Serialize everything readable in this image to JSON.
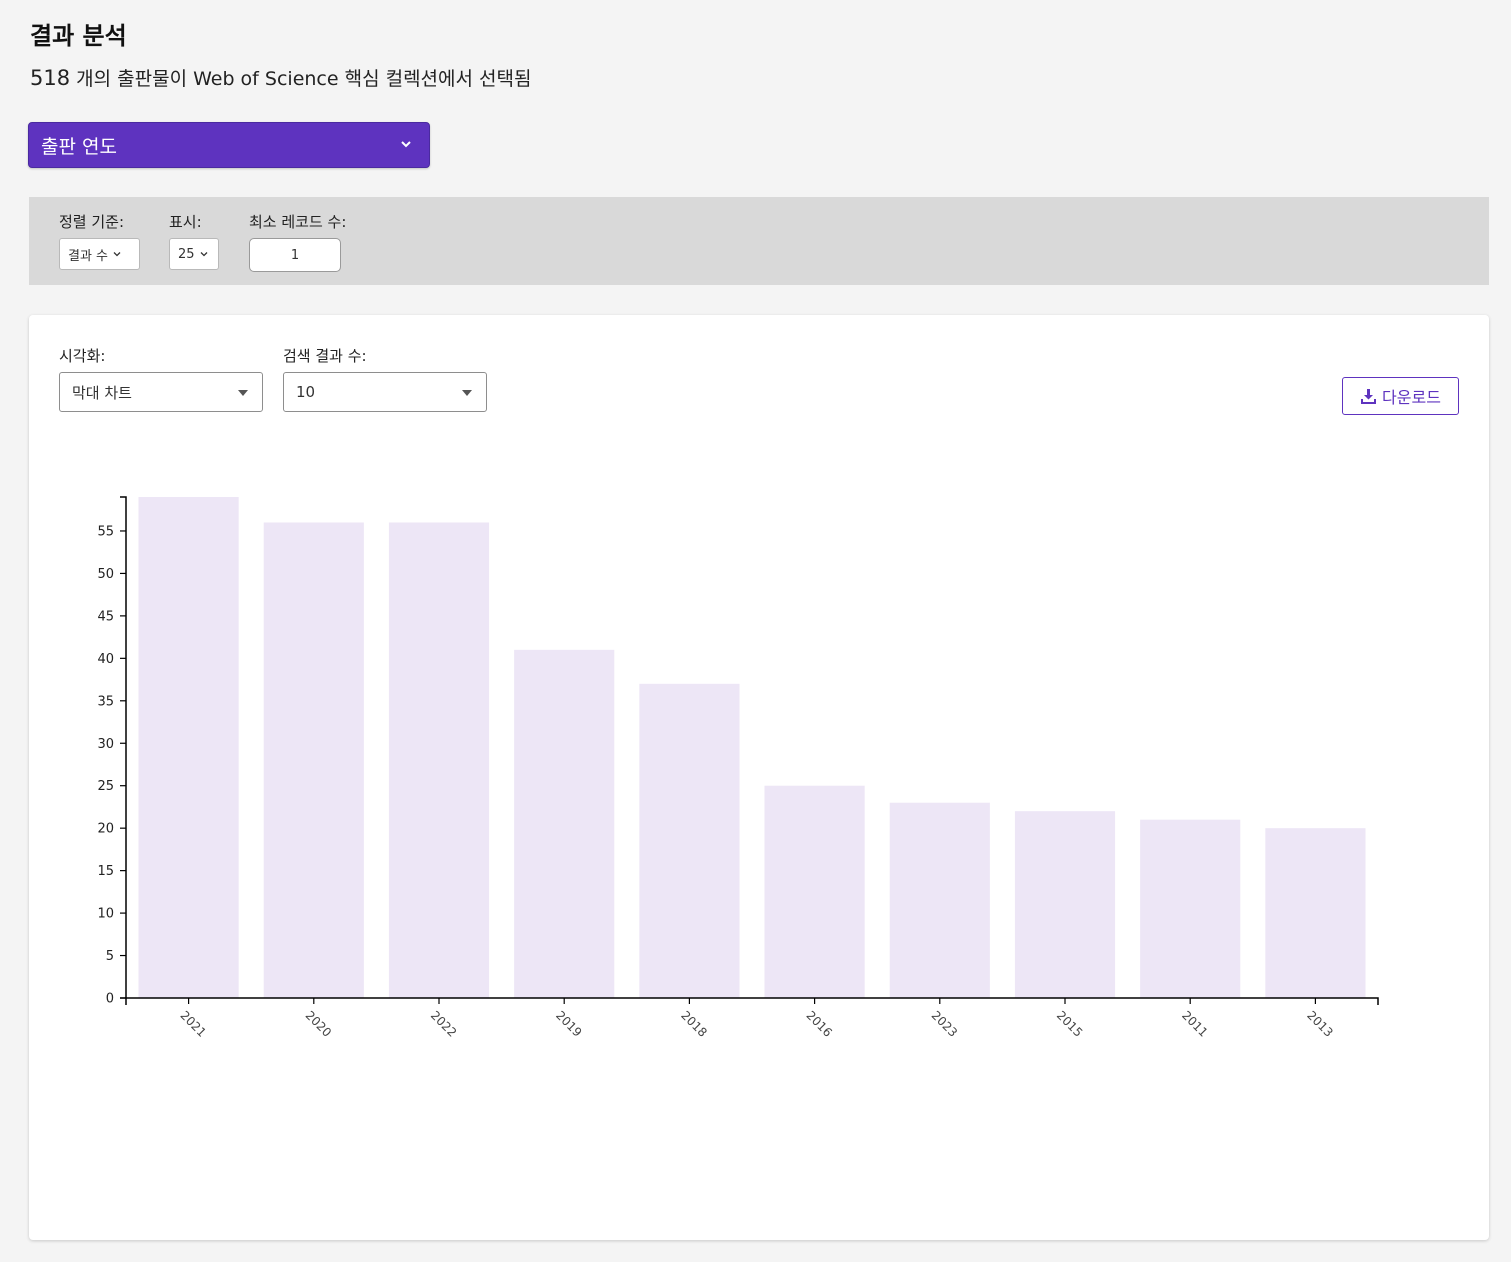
{
  "header": {
    "title": "결과 분석",
    "subtitle_count": "518",
    "subtitle_text": " 개의 출판물이 Web of Science 핵심 컬렉션에서 선택됨"
  },
  "field_selector": {
    "label": "출판 연도",
    "icon": "chevron-down-icon"
  },
  "controls": {
    "sort_label": "정렬 기준:",
    "sort_value": "결과 수",
    "show_label": "표시:",
    "show_value": "25",
    "min_records_label": "최소 레코드 수:",
    "min_records_value": "1"
  },
  "chart_panel": {
    "visualization_label": "시각화:",
    "visualization_value": "막대 차트",
    "results_count_label": "검색 결과 수:",
    "results_count_value": "10",
    "download_label": "다운로드",
    "download_icon": "download-icon"
  },
  "colors": {
    "accent": "#5e33bf",
    "bar": "#ede6f6",
    "axis": "#000000"
  },
  "chart_data": {
    "type": "bar",
    "categories": [
      "2021",
      "2020",
      "2022",
      "2019",
      "2018",
      "2016",
      "2023",
      "2015",
      "2011",
      "2013"
    ],
    "values": [
      59,
      56,
      56,
      41,
      37,
      25,
      23,
      22,
      21,
      20
    ],
    "yticks": [
      0,
      5,
      10,
      15,
      20,
      25,
      30,
      35,
      40,
      45,
      50,
      55
    ],
    "ylim": [
      0,
      59
    ],
    "title": "",
    "xlabel": "",
    "ylabel": "",
    "grid": false
  }
}
